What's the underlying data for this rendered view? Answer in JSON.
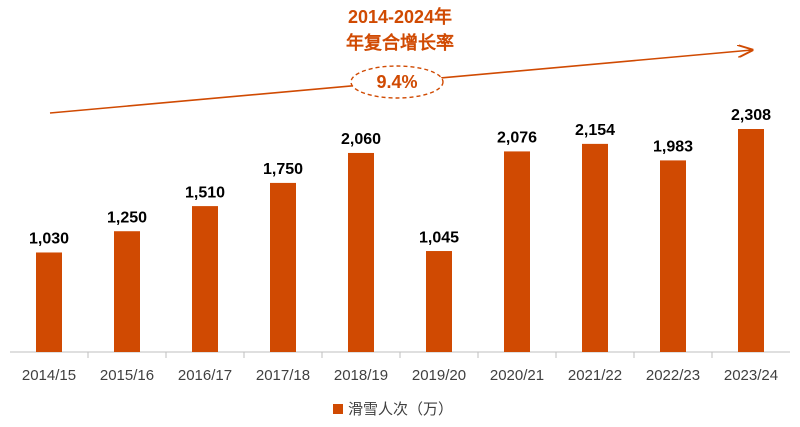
{
  "chart_data": {
    "type": "bar",
    "annotation": {
      "title_lines": [
        "2014-2024年",
        "年复合增长率"
      ],
      "rate": "9.4%"
    },
    "categories": [
      "2014/15",
      "2015/16",
      "2016/17",
      "2017/18",
      "2018/19",
      "2019/20",
      "2020/21",
      "2021/22",
      "2022/23",
      "2023/24"
    ],
    "series": [
      {
        "name": "滑雪人次（万）",
        "color": "#d04a02",
        "values": [
          1030,
          1250,
          1510,
          1750,
          2060,
          1045,
          2076,
          2154,
          1983,
          2308
        ],
        "value_labels": [
          "1,030",
          "1,250",
          "1,510",
          "1,750",
          "2,060",
          "1,045",
          "2,076",
          "2,154",
          "1,983",
          "2,308"
        ]
      }
    ],
    "legend": "bottom"
  }
}
